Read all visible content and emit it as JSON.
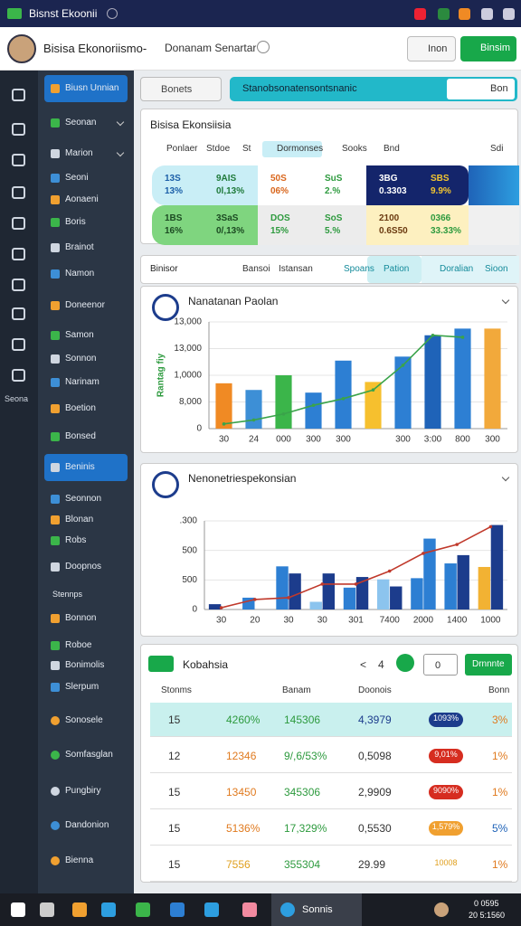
{
  "top_bar": {
    "title": "Bisnst Ekoonii"
  },
  "header": {
    "title": "Bisisa Ekonoriismo-",
    "subtitle": "Donanam Senartar",
    "search_button": "Inon",
    "primary_button": "Binsim"
  },
  "rail": {
    "label": "Seona"
  },
  "sidebar": {
    "items": [
      {
        "label": "Biusn Unnian",
        "selected": true
      },
      {
        "label": "Seonan"
      },
      {
        "label": "Marion"
      },
      {
        "label": "Seoni"
      },
      {
        "label": "Aonaeni"
      },
      {
        "label": "Boris"
      },
      {
        "label": "Brainot"
      },
      {
        "label": "Namon"
      },
      {
        "label": "Doneenor"
      },
      {
        "label": "Samon"
      },
      {
        "label": "Sonnon"
      },
      {
        "label": "Narinam"
      },
      {
        "label": "Boetion"
      },
      {
        "label": "Bonsed"
      },
      {
        "label": "Beninis",
        "selected": true
      },
      {
        "label": "Seonnon"
      },
      {
        "label": "Blonan"
      },
      {
        "label": "Robs"
      },
      {
        "label": "Doopnos"
      },
      {
        "label": "Stennps"
      },
      {
        "label": "Bonnon"
      },
      {
        "label": "Roboe"
      },
      {
        "label": "Bonimolis"
      },
      {
        "label": "Slerpum"
      },
      {
        "label": "Sonosele"
      },
      {
        "label": "Somfasglan"
      },
      {
        "label": "Pungbiry"
      },
      {
        "label": "Dandonion"
      },
      {
        "label": "Bienna"
      }
    ]
  },
  "search": {
    "placeholder": "Bonets",
    "query": "Stanobsonatensontsnanic",
    "button": "Bon"
  },
  "summary": {
    "title": "Bisisa Ekonsiisia",
    "filters": [
      "Ponlaer",
      "Stdoe",
      "St",
      "Dormonses",
      "Sooks",
      "Bnd",
      "Sdi"
    ],
    "tiles": [
      [
        {
          "top": "13S",
          "bottom": "13%",
          "color": "#c9eef6",
          "text_color": "#1b5fa8"
        },
        {
          "top": "9AIS",
          "bottom": "0l,13%",
          "color": "#c9eef6",
          "text_color": "#1f7a3a"
        },
        {
          "top": "50S",
          "bottom": "06%",
          "color": "#ffffff",
          "text_color": "#d9661c"
        },
        {
          "top": "SuS",
          "bottom": "2.%",
          "color": "#ffffff",
          "text_color": "#2d9a3e"
        },
        {
          "top": "3BG",
          "bottom": "0.3303",
          "color": "#14256b",
          "text_color": "#ffffff"
        },
        {
          "top": "SBS",
          "bottom": "9.9%",
          "color": "#14256b",
          "text_color": "#f2c531"
        }
      ],
      [
        {
          "top": "1BS",
          "bottom": "16%",
          "color": "#7fd57f",
          "text_color": "#1c4a22"
        },
        {
          "top": "3SaS",
          "bottom": "0/,13%",
          "color": "#7fd57f",
          "text_color": "#1c4a22"
        },
        {
          "top": "DOS",
          "bottom": "15%",
          "color": "#ececec",
          "text_color": "#2d9a3e"
        },
        {
          "top": "SoS",
          "bottom": "5.%",
          "color": "#ececec",
          "text_color": "#2d9a3e"
        },
        {
          "top": "2100",
          "bottom": "0.6S50",
          "color": "#fdf0c0",
          "text_color": "#6b3a10"
        },
        {
          "top": "0366",
          "bottom": "33.33%",
          "color": "#fdf0c0",
          "text_color": "#2d9a3e"
        }
      ]
    ]
  },
  "tabs": [
    "Binisor",
    "Bansoi",
    "Istansan",
    "Spoans",
    "Pation",
    "Doralian",
    "Sioon"
  ],
  "chart_data": [
    {
      "type": "bar",
      "title": "Nanatanan Paolan",
      "y_label": "Rantag fiy",
      "categories": [
        "30",
        "24",
        "000",
        "300",
        "300",
        null,
        "300",
        "3:00",
        "800",
        "300"
      ],
      "series": [
        {
          "type": "bar",
          "values": [
            6800,
            5800,
            8000,
            5400,
            10200,
            7000,
            10800,
            14000,
            15000,
            15000
          ],
          "colors": [
            "#f08a24",
            "#3d8fd6",
            "#3bb54a",
            "#2d7fd3",
            "#2d7fd3",
            "#f6c02e",
            "#2d7fd3",
            "#1f63b8",
            "#2d7fd3",
            "#f2a93b"
          ]
        },
        {
          "type": "line",
          "color": "#3aa34a",
          "values": [
            700,
            1300,
            2200,
            3500,
            4500,
            5800,
            9500,
            14000,
            13700,
            null
          ]
        }
      ],
      "ylim": [
        0,
        16000
      ],
      "yticks": [
        0,
        {
          "value": 4000,
          "label": "8,000"
        },
        {
          "value": 8000,
          "label": "1,0000"
        },
        {
          "value": 12000,
          "label": "13,000"
        },
        {
          "value": 16000,
          "label": "13,000"
        }
      ],
      "grid": true
    },
    {
      "type": "bar",
      "title": "Nenonetriespekonsian",
      "categories": [
        "30",
        "20",
        "30",
        "30",
        "301",
        "7400",
        "2000",
        "1400",
        "1000"
      ],
      "series": [
        {
          "type": "bar",
          "values": [
            90,
            200,
            730,
            130,
            370,
            510,
            530,
            780,
            720
          ],
          "colors": [
            "#1c3c8c",
            "#2d7fd3",
            "#2d7fd3",
            "#8cc4ee",
            "#2d7fd3",
            "#8cc4ee",
            "#2d7fd3",
            "#2d7fd3",
            "#f2b233"
          ]
        },
        {
          "type": "bar",
          "values": [
            null,
            null,
            610,
            610,
            550,
            390,
            1200,
            920,
            1430
          ],
          "colors": [
            "#1c3c8c",
            "#1c3c8c",
            "#1c3c8c",
            "#1c3c8c",
            "#1c3c8c",
            "#1c3c8c",
            "#2d7fd3",
            "#1c3c8c",
            "#1c3c8c"
          ]
        },
        {
          "type": "line",
          "color": "#c0392b",
          "values": [
            30,
            170,
            200,
            430,
            430,
            650,
            950,
            1100,
            1400
          ]
        }
      ],
      "ylim": [
        0,
        1500
      ],
      "yticks": [
        0,
        500,
        {
          "value": 1000,
          "label": "500"
        },
        {
          "value": 1500,
          "label": ".300"
        }
      ],
      "grid": true
    }
  ],
  "table": {
    "title": "Kobahsia",
    "pager": [
      "<",
      "4"
    ],
    "search": "0",
    "button": "Drnnnte",
    "columns": [
      "Stonms",
      "Banam",
      "Doonois",
      "Bonn"
    ],
    "rows": [
      {
        "cells": [
          "15",
          "4260%",
          "145306",
          "4,3979",
          "1093%",
          "3%"
        ],
        "highlight": true,
        "badge_color": "#1c3c8c",
        "colors": [
          "#333",
          "#2d9a3e",
          "#2d9a3e",
          "#1c3c8c",
          "#fff",
          "#e07a1f"
        ]
      },
      {
        "cells": [
          "12",
          "12346",
          "9/,6/53%",
          "0,5098",
          "9,01%",
          "1%"
        ],
        "badge_color": "#d62d20",
        "colors": [
          "#333",
          "#e07a1f",
          "#2d9a3e",
          "#333",
          "#fff",
          "#e07a1f"
        ]
      },
      {
        "cells": [
          "15",
          "13450",
          "345306",
          "2,9909",
          "9090%",
          "1%"
        ],
        "badge_color": "#d62d20",
        "colors": [
          "#333",
          "#e07a1f",
          "#2d9a3e",
          "#333",
          "#fff",
          "#e07a1f"
        ]
      },
      {
        "cells": [
          "15",
          "5136%",
          "17,329%",
          "0,5530",
          "1,579%",
          "5%"
        ],
        "badge_color": "#f0a030",
        "colors": [
          "#333",
          "#e07a1f",
          "#2d9a3e",
          "#333",
          "#fff",
          "#1f63b8"
        ]
      },
      {
        "cells": [
          "15",
          "7556",
          "355304",
          "29.99",
          "10008",
          "1%"
        ],
        "colors": [
          "#333",
          "#e0a01f",
          "#2d9a3e",
          "#333",
          "#e0a01f",
          "#e07a1f"
        ]
      }
    ]
  },
  "taskbar": {
    "app": "Sonnis",
    "time": "0 0595",
    "date": "20 5:1560"
  }
}
